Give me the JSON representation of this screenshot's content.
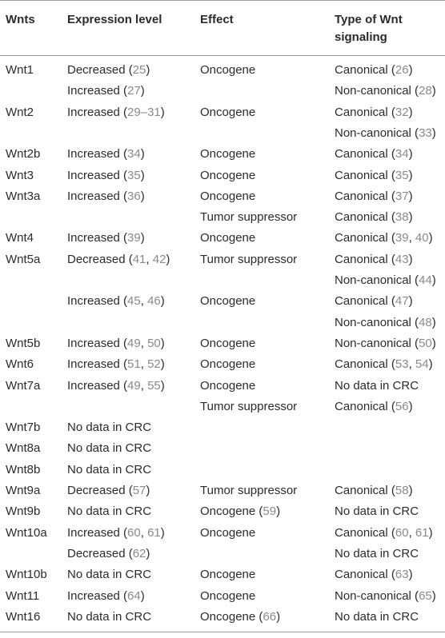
{
  "headers": [
    "Wnts",
    "Expression level",
    "Effect",
    "Type of Wnt signaling"
  ],
  "header_lines": {
    "type_line1": "Type of Wnt",
    "type_line2": "signaling"
  },
  "rows": [
    [
      "Wnt1",
      [
        "Decreased (",
        "25",
        ")"
      ],
      [
        "Oncogene"
      ],
      [
        "Canonical (",
        "26",
        ")"
      ]
    ],
    [
      "",
      [
        "Increased (",
        "27",
        ")"
      ],
      [
        ""
      ],
      [
        "Non-canonical (",
        "28",
        ")"
      ]
    ],
    [
      "Wnt2",
      [
        "Increased (",
        "29–31",
        ")"
      ],
      [
        "Oncogene"
      ],
      [
        "Canonical (",
        "32",
        ")"
      ]
    ],
    [
      "",
      [
        ""
      ],
      [
        ""
      ],
      [
        "Non-canonical (",
        "33",
        ")"
      ]
    ],
    [
      "Wnt2b",
      [
        "Increased (",
        "34",
        ")"
      ],
      [
        "Oncogene"
      ],
      [
        "Canonical (",
        "34",
        ")"
      ]
    ],
    [
      "Wnt3",
      [
        "Increased (",
        "35",
        ")"
      ],
      [
        "Oncogene"
      ],
      [
        "Canonical (",
        "35",
        ")"
      ]
    ],
    [
      "Wnt3a",
      [
        "Increased (",
        "36",
        ")"
      ],
      [
        "Oncogene"
      ],
      [
        "Canonical (",
        "37",
        ")"
      ]
    ],
    [
      "",
      [
        ""
      ],
      [
        "Tumor suppressor"
      ],
      [
        "Canonical (",
        "38",
        ")"
      ]
    ],
    [
      "Wnt4",
      [
        "Increased (",
        "39",
        ")"
      ],
      [
        "Oncogene"
      ],
      [
        "Canonical (",
        "39",
        ", ",
        "40",
        ")"
      ]
    ],
    [
      "Wnt5a",
      [
        "Decreased (",
        "41",
        ", ",
        "42",
        ")"
      ],
      [
        "Tumor suppressor"
      ],
      [
        "Canonical (",
        "43",
        ")"
      ]
    ],
    [
      "",
      [
        ""
      ],
      [
        ""
      ],
      [
        "Non-canonical (",
        "44",
        ")"
      ]
    ],
    [
      "",
      [
        "Increased (",
        "45",
        ", ",
        "46",
        ")"
      ],
      [
        "Oncogene"
      ],
      [
        "Canonical (",
        "47",
        ")"
      ]
    ],
    [
      "",
      [
        ""
      ],
      [
        ""
      ],
      [
        "Non-canonical (",
        "48",
        ")"
      ]
    ],
    [
      "Wnt5b",
      [
        "Increased (",
        "49",
        ", ",
        "50",
        ")"
      ],
      [
        "Oncogene"
      ],
      [
        "Non-canonical (",
        "50",
        ")"
      ]
    ],
    [
      "Wnt6",
      [
        "Increased (",
        "51",
        ", ",
        "52",
        ")"
      ],
      [
        "Oncogene"
      ],
      [
        "Canonical (",
        "53",
        ", ",
        "54",
        ")"
      ]
    ],
    [
      "Wnt7a",
      [
        "Increased (",
        "49",
        ", ",
        "55",
        ")"
      ],
      [
        "Oncogene"
      ],
      [
        "No data in CRC"
      ]
    ],
    [
      "",
      [
        ""
      ],
      [
        "Tumor suppressor"
      ],
      [
        "Canonical (",
        "56",
        ")"
      ]
    ],
    [
      "Wnt7b",
      [
        "No data in CRC"
      ],
      [
        ""
      ],
      [
        ""
      ]
    ],
    [
      "Wnt8a",
      [
        "No data in CRC"
      ],
      [
        ""
      ],
      [
        ""
      ]
    ],
    [
      "Wnt8b",
      [
        "No data in CRC"
      ],
      [
        ""
      ],
      [
        ""
      ]
    ],
    [
      "Wnt9a",
      [
        "Decreased (",
        "57",
        ")"
      ],
      [
        "Tumor suppressor"
      ],
      [
        "Canonical (",
        "58",
        ")"
      ]
    ],
    [
      "Wnt9b",
      [
        "No data in CRC"
      ],
      [
        "Oncogene (",
        "59",
        ")"
      ],
      [
        "No data in CRC"
      ]
    ],
    [
      "Wnt10a",
      [
        "Increased (",
        "60",
        ", ",
        "61",
        ")"
      ],
      [
        "Oncogene"
      ],
      [
        "Canonical (",
        "60",
        ", ",
        "61",
        ")"
      ]
    ],
    [
      "",
      [
        "Decreased (",
        "62",
        ")"
      ],
      [
        ""
      ],
      [
        "No data in CRC"
      ]
    ],
    [
      "Wnt10b",
      [
        "No data in CRC"
      ],
      [
        "Oncogene"
      ],
      [
        "Canonical (",
        "63",
        ")"
      ]
    ],
    [
      "Wnt11",
      [
        "Increased (",
        "64",
        ")"
      ],
      [
        "Oncogene"
      ],
      [
        "Non-canonical (",
        "65",
        ")"
      ]
    ],
    [
      "Wnt16",
      [
        "No data in CRC"
      ],
      [
        "Oncogene (",
        "66",
        ")"
      ],
      [
        "No data in CRC"
      ]
    ]
  ],
  "colors": {
    "text": "#2b2b2b",
    "reference": "#8a8a8a",
    "rule": "#9a9a9a"
  }
}
